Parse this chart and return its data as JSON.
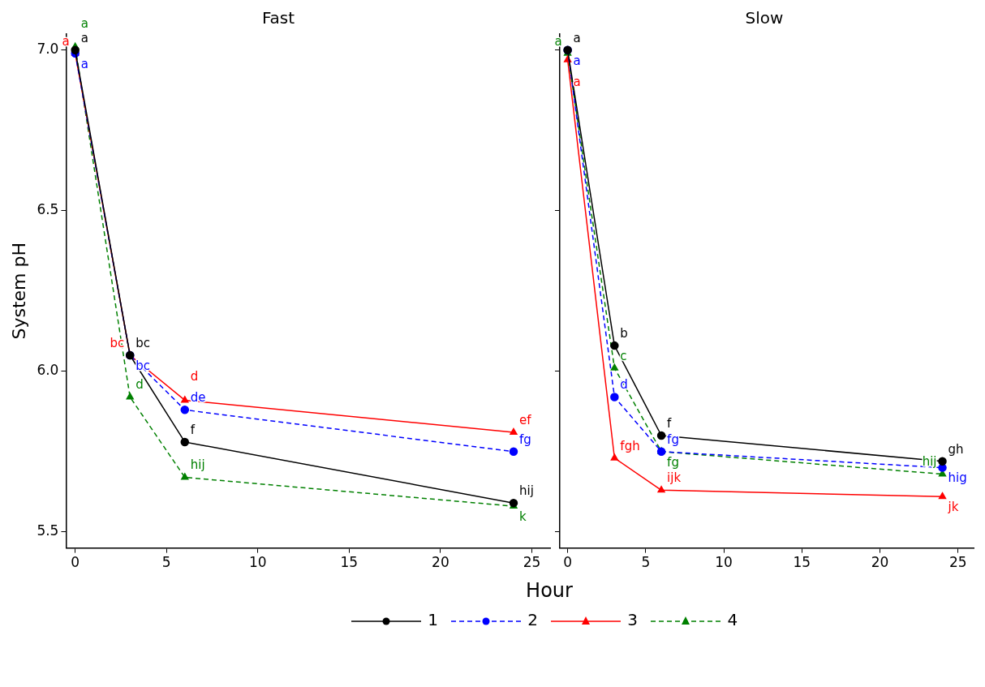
{
  "chart_data": [
    {
      "type": "line",
      "title": "Fast",
      "xlabel": "Hour",
      "ylabel": "System pH",
      "xlim": [
        -0.5,
        26
      ],
      "xticks": [
        0,
        5,
        10,
        15,
        20,
        25
      ],
      "ylim": [
        5.45,
        7.05
      ],
      "yticks": [
        5.5,
        {
          "value": 6,
          "label": "6.0"
        },
        6.5,
        {
          "value": 7,
          "label": "7.0"
        }
      ],
      "grid": false,
      "legend": "bottom",
      "x": [
        0,
        3,
        6,
        24
      ],
      "series": [
        {
          "name": "1",
          "color": "#000000",
          "marker": "circle",
          "line_style": "solid",
          "values": [
            7.0,
            6.05,
            5.78,
            5.59
          ],
          "value_labels": [
            "a",
            "bc",
            "f",
            "hij"
          ]
        },
        {
          "name": "2",
          "color": "#0000ff",
          "marker": "circle",
          "line_style": "dashed",
          "values": [
            6.99,
            6.05,
            5.88,
            5.75
          ],
          "value_labels": [
            "a",
            "bc",
            "de",
            "fg"
          ]
        },
        {
          "name": "3",
          "color": "#ff0000",
          "marker": "triangle",
          "line_style": "solid",
          "values": [
            6.99,
            6.05,
            5.91,
            5.81
          ],
          "value_labels": [
            "a",
            "bc",
            "d",
            "ef"
          ]
        },
        {
          "name": "4",
          "color": "#008000",
          "marker": "triangle",
          "line_style": "dashed",
          "values": [
            7.01,
            5.92,
            5.67,
            5.58
          ],
          "value_labels": [
            "a",
            "d",
            "hij",
            "k"
          ]
        }
      ]
    },
    {
      "type": "line",
      "title": "Slow",
      "xlim": [
        -0.5,
        26
      ],
      "xticks": [
        0,
        5,
        10,
        15,
        20,
        25
      ],
      "ylim": [
        5.45,
        7.05
      ],
      "tick_labels": "x",
      "grid": false,
      "x": [
        0,
        3,
        6,
        24
      ],
      "series": [
        {
          "name": "1",
          "color": "#000000",
          "marker": "circle",
          "line_style": "solid",
          "values": [
            7.0,
            6.08,
            5.8,
            5.72
          ],
          "value_labels": [
            "a",
            "b",
            "f",
            "gh"
          ]
        },
        {
          "name": "2",
          "color": "#0000ff",
          "marker": "circle",
          "line_style": "dashed",
          "values": [
            7.0,
            5.92,
            5.75,
            5.7
          ],
          "value_labels": [
            "a",
            "d",
            "fg",
            "hig"
          ]
        },
        {
          "name": "3",
          "color": "#ff0000",
          "marker": "triangle",
          "line_style": "solid",
          "values": [
            6.97,
            5.73,
            5.63,
            5.61
          ],
          "value_labels": [
            "a",
            "fgh",
            "ijk",
            "jk"
          ]
        },
        {
          "name": "4",
          "color": "#008000",
          "marker": "triangle",
          "line_style": "dashed",
          "values": [
            6.99,
            6.01,
            5.75,
            5.68
          ],
          "value_labels": [
            "a",
            "c",
            "fg",
            "hij"
          ]
        }
      ]
    }
  ]
}
